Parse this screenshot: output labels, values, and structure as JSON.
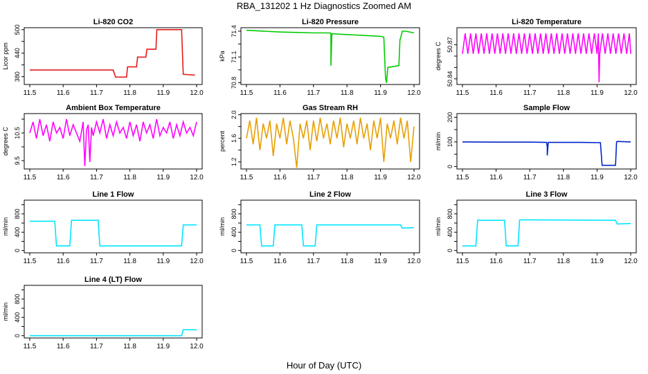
{
  "figure": {
    "title": "RBA_131202  1 Hz Diagnostics Zoomed AM",
    "xlabel": "Hour of Day (UTC)"
  },
  "chart_data": [
    {
      "id": "co2",
      "type": "line",
      "title": "Li-820 CO2",
      "ylabel": "Licor ppm",
      "color": "#e41a1c",
      "xlim": [
        11.5,
        12.0
      ],
      "ylim": [
        360,
        505
      ],
      "xticks": [
        "11.5",
        "11.6",
        "11.7",
        "11.8",
        "11.9",
        "12.0"
      ],
      "xtickvals": [
        11.5,
        11.6,
        11.7,
        11.8,
        11.9,
        12.0
      ],
      "yticks": [
        "380",
        "440",
        "500"
      ],
      "ytickvals": [
        380,
        440,
        500
      ],
      "yticks_minor": [
        410,
        470
      ],
      "series": [
        {
          "name": "CO2",
          "x": [
            11.5,
            11.75,
            11.757,
            11.79,
            11.793,
            11.82,
            11.823,
            11.848,
            11.851,
            11.878,
            11.881,
            11.955,
            11.96,
            11.995
          ],
          "y": [
            397,
            397,
            379,
            379,
            405,
            405,
            430,
            430,
            450,
            450,
            500,
            500,
            386,
            384
          ]
        }
      ]
    },
    {
      "id": "pressure",
      "type": "line",
      "title": "Li-820 Pressure",
      "ylabel": "kPa",
      "color": "#00cc00",
      "xlim": [
        11.5,
        12.0
      ],
      "ylim": [
        70.78,
        71.44
      ],
      "xticks": [
        "11.5",
        "11.6",
        "11.7",
        "11.8",
        "11.9",
        "12.0"
      ],
      "xtickvals": [
        11.5,
        11.6,
        11.7,
        11.8,
        11.9,
        12.0
      ],
      "yticks": [
        "70.8",
        "71.1",
        "71.4"
      ],
      "ytickvals": [
        70.8,
        71.1,
        71.4
      ],
      "yticks_minor": [
        70.95,
        71.25
      ],
      "series": [
        {
          "name": "Pressure",
          "x": [
            11.5,
            11.6,
            11.7,
            11.75,
            11.752,
            11.752,
            11.755,
            11.85,
            11.9,
            11.91,
            11.915,
            11.918,
            11.922,
            11.925,
            11.955,
            11.958,
            11.96,
            11.965,
            11.975,
            12.0
          ],
          "y": [
            71.41,
            71.39,
            71.38,
            71.38,
            71.37,
            71.0,
            71.37,
            71.35,
            71.34,
            71.33,
            70.85,
            70.8,
            70.98,
            70.98,
            71.0,
            71.3,
            71.32,
            71.4,
            71.4,
            71.38
          ]
        }
      ]
    },
    {
      "id": "licor_temp",
      "type": "line",
      "title": "Li-820 Temperature",
      "ylabel": "degrees C",
      "color": "#ff00ff",
      "xlim": [
        11.5,
        12.0
      ],
      "ylim": [
        50.835,
        50.885
      ],
      "xticks": [
        "11.5",
        "11.6",
        "11.7",
        "11.8",
        "11.9",
        "12.0"
      ],
      "xtickvals": [
        11.5,
        11.6,
        11.7,
        11.8,
        11.9,
        12.0
      ],
      "yticks": [
        "50.84",
        "50.87"
      ],
      "ytickvals": [
        50.84,
        50.87
      ],
      "yticks_minor": [
        50.85,
        50.86
      ],
      "series": [
        {
          "name": "Temperature",
          "x": [
            11.5,
            11.508,
            11.516,
            11.524,
            11.532,
            11.54,
            11.548,
            11.556,
            11.564,
            11.572,
            11.58,
            11.588,
            11.596,
            11.604,
            11.612,
            11.62,
            11.628,
            11.636,
            11.644,
            11.652,
            11.66,
            11.668,
            11.676,
            11.684,
            11.692,
            11.7,
            11.708,
            11.716,
            11.724,
            11.732,
            11.74,
            11.748,
            11.756,
            11.764,
            11.772,
            11.78,
            11.788,
            11.796,
            11.804,
            11.812,
            11.82,
            11.828,
            11.836,
            11.844,
            11.852,
            11.86,
            11.868,
            11.876,
            11.884,
            11.892,
            11.9,
            11.904,
            11.906,
            11.908,
            11.916,
            11.924,
            11.932,
            11.94,
            11.948,
            11.956,
            11.964,
            11.972,
            11.98,
            11.988,
            11.996,
            12.0
          ],
          "y": [
            50.862,
            50.88,
            50.862,
            50.88,
            50.862,
            50.88,
            50.862,
            50.88,
            50.862,
            50.88,
            50.862,
            50.88,
            50.862,
            50.88,
            50.862,
            50.88,
            50.862,
            50.88,
            50.862,
            50.88,
            50.862,
            50.88,
            50.862,
            50.88,
            50.862,
            50.88,
            50.862,
            50.88,
            50.862,
            50.88,
            50.862,
            50.88,
            50.862,
            50.88,
            50.862,
            50.88,
            50.862,
            50.88,
            50.862,
            50.88,
            50.862,
            50.88,
            50.862,
            50.88,
            50.862,
            50.88,
            50.862,
            50.88,
            50.862,
            50.88,
            50.862,
            50.88,
            50.837,
            50.862,
            50.88,
            50.862,
            50.88,
            50.862,
            50.88,
            50.862,
            50.88,
            50.862,
            50.88,
            50.862,
            50.88,
            50.862
          ]
        }
      ]
    },
    {
      "id": "box_temp",
      "type": "line",
      "title": "Ambient Box Temperature",
      "ylabel": "degrees C",
      "color": "#ff00ff",
      "xlim": [
        11.5,
        12.0
      ],
      "ylim": [
        9.2,
        11.2
      ],
      "xticks": [
        "11.5",
        "11.6",
        "11.7",
        "11.8",
        "11.9",
        "12.0"
      ],
      "xtickvals": [
        11.5,
        11.6,
        11.7,
        11.8,
        11.9,
        12.0
      ],
      "yticks": [
        "9.5",
        "10.5"
      ],
      "ytickvals": [
        9.5,
        10.5
      ],
      "yticks_minor": [
        10.0,
        11.0
      ],
      "series": [
        {
          "name": "Box temperature",
          "x": [
            11.5,
            11.51,
            11.52,
            11.53,
            11.54,
            11.55,
            11.56,
            11.57,
            11.58,
            11.59,
            11.6,
            11.61,
            11.62,
            11.63,
            11.64,
            11.65,
            11.66,
            11.665,
            11.67,
            11.675,
            11.68,
            11.685,
            11.69,
            11.7,
            11.71,
            11.72,
            11.73,
            11.74,
            11.75,
            11.76,
            11.77,
            11.78,
            11.79,
            11.8,
            11.81,
            11.82,
            11.83,
            11.84,
            11.85,
            11.86,
            11.87,
            11.88,
            11.89,
            11.9,
            11.91,
            11.92,
            11.93,
            11.94,
            11.95,
            11.96,
            11.97,
            11.98,
            11.99,
            12.0
          ],
          "y": [
            10.5,
            10.9,
            10.3,
            11.0,
            10.4,
            10.8,
            10.2,
            10.9,
            10.5,
            10.7,
            10.3,
            11.0,
            10.4,
            10.8,
            10.5,
            10.2,
            10.9,
            9.3,
            10.6,
            10.8,
            9.45,
            10.7,
            10.4,
            10.9,
            10.5,
            11.0,
            10.3,
            10.8,
            10.4,
            10.9,
            10.5,
            10.7,
            10.3,
            10.9,
            10.4,
            10.8,
            10.2,
            10.9,
            10.5,
            10.8,
            10.3,
            11.0,
            10.4,
            10.7,
            10.5,
            10.9,
            10.3,
            10.8,
            10.4,
            10.9,
            10.5,
            10.7,
            10.4,
            10.9
          ]
        }
      ]
    },
    {
      "id": "gas_rh",
      "type": "line",
      "title": "Gas Stream RH",
      "ylabel": "percent",
      "color": "#e69f00",
      "xlim": [
        11.5,
        12.0
      ],
      "ylim": [
        1.08,
        2.02
      ],
      "xticks": [
        "11.5",
        "11.6",
        "11.7",
        "11.8",
        "11.9",
        "12.0"
      ],
      "xtickvals": [
        11.5,
        11.6,
        11.7,
        11.8,
        11.9,
        12.0
      ],
      "yticks": [
        "1.2",
        "1.6",
        "2.0"
      ],
      "ytickvals": [
        1.2,
        1.6,
        2.0
      ],
      "yticks_minor": [
        1.4,
        1.8
      ],
      "series": [
        {
          "name": "RH",
          "x": [
            11.5,
            11.51,
            11.52,
            11.53,
            11.54,
            11.55,
            11.56,
            11.57,
            11.58,
            11.59,
            11.6,
            11.61,
            11.62,
            11.63,
            11.64,
            11.65,
            11.66,
            11.67,
            11.68,
            11.69,
            11.7,
            11.71,
            11.72,
            11.73,
            11.74,
            11.75,
            11.76,
            11.77,
            11.78,
            11.79,
            11.8,
            11.81,
            11.82,
            11.83,
            11.84,
            11.85,
            11.86,
            11.87,
            11.88,
            11.89,
            11.9,
            11.91,
            11.92,
            11.93,
            11.94,
            11.95,
            11.96,
            11.97,
            11.98,
            11.99,
            12.0
          ],
          "y": [
            1.6,
            1.9,
            1.5,
            1.95,
            1.4,
            1.85,
            1.6,
            1.9,
            1.3,
            1.85,
            1.6,
            1.95,
            1.5,
            1.9,
            1.6,
            1.1,
            1.85,
            1.6,
            1.9,
            1.4,
            1.9,
            1.55,
            1.95,
            1.6,
            1.85,
            1.5,
            1.9,
            1.6,
            1.95,
            1.45,
            1.85,
            1.6,
            1.9,
            1.5,
            1.95,
            1.6,
            1.85,
            1.4,
            1.9,
            1.6,
            1.95,
            1.2,
            1.85,
            1.6,
            1.9,
            1.5,
            1.95,
            1.6,
            1.9,
            1.2,
            1.8
          ]
        }
      ]
    },
    {
      "id": "sample_flow",
      "type": "line",
      "title": "Sample Flow",
      "ylabel": "ml/min",
      "color": "#0022cc",
      "xlim": [
        11.5,
        12.0
      ],
      "ylim": [
        -10,
        215
      ],
      "xticks": [
        "11.5",
        "11.6",
        "11.7",
        "11.8",
        "11.9",
        "12.0"
      ],
      "xtickvals": [
        11.5,
        11.6,
        11.7,
        11.8,
        11.9,
        12.0
      ],
      "yticks": [
        "0",
        "100",
        "200"
      ],
      "ytickvals": [
        0,
        100,
        200
      ],
      "yticks_minor": [
        50,
        150
      ],
      "series": [
        {
          "name": "Sample flow",
          "x": [
            11.5,
            11.6,
            11.7,
            11.75,
            11.752,
            11.752,
            11.755,
            11.85,
            11.91,
            11.915,
            11.955,
            11.958,
            11.96,
            12.0
          ],
          "y": [
            100,
            99,
            99,
            98,
            80,
            45,
            98,
            98,
            97,
            5,
            5,
            100,
            102,
            100
          ]
        }
      ]
    },
    {
      "id": "line1",
      "type": "line",
      "title": "Line 1 Flow",
      "ylabel": "ml/min",
      "color": "#00e5ff",
      "xlim": [
        11.5,
        12.0
      ],
      "ylim": [
        -50,
        1100
      ],
      "xticks": [
        "11.5",
        "11.6",
        "11.7",
        "11.8",
        "11.9",
        "12.0"
      ],
      "xtickvals": [
        11.5,
        11.6,
        11.7,
        11.8,
        11.9,
        12.0
      ],
      "yticks": [
        "0",
        "400",
        "800"
      ],
      "ytickvals": [
        0,
        400,
        800
      ],
      "yticks_minor": [
        200,
        600,
        1000
      ],
      "series": [
        {
          "name": "Line 1 flow",
          "x": [
            11.5,
            11.575,
            11.58,
            11.62,
            11.625,
            11.705,
            11.71,
            11.955,
            11.96,
            12.0
          ],
          "y": [
            640,
            640,
            100,
            100,
            660,
            660,
            100,
            100,
            560,
            560
          ]
        }
      ]
    },
    {
      "id": "line2",
      "type": "line",
      "title": "Line 2 Flow",
      "ylabel": "ml/min",
      "color": "#00e5ff",
      "xlim": [
        11.5,
        12.0
      ],
      "ylim": [
        -50,
        1100
      ],
      "xticks": [
        "11.5",
        "11.6",
        "11.7",
        "11.8",
        "11.9",
        "12.0"
      ],
      "xtickvals": [
        11.5,
        11.6,
        11.7,
        11.8,
        11.9,
        12.0
      ],
      "yticks": [
        "0",
        "400",
        "800"
      ],
      "ytickvals": [
        0,
        400,
        800
      ],
      "yticks_minor": [
        200,
        600,
        1000
      ],
      "series": [
        {
          "name": "Line 2 flow",
          "x": [
            11.5,
            11.54,
            11.545,
            11.58,
            11.585,
            11.665,
            11.67,
            11.705,
            11.71,
            11.96,
            11.965,
            12.0
          ],
          "y": [
            560,
            560,
            100,
            100,
            560,
            560,
            100,
            100,
            560,
            560,
            490,
            500
          ]
        }
      ]
    },
    {
      "id": "line3",
      "type": "line",
      "title": "Line 3 Flow",
      "ylabel": "ml/min",
      "color": "#00e5ff",
      "xlim": [
        11.5,
        12.0
      ],
      "ylim": [
        -50,
        1100
      ],
      "xticks": [
        "11.5",
        "11.6",
        "11.7",
        "11.8",
        "11.9",
        "12.0"
      ],
      "xtickvals": [
        11.5,
        11.6,
        11.7,
        11.8,
        11.9,
        12.0
      ],
      "yticks": [
        "0",
        "400",
        "800"
      ],
      "ytickvals": [
        0,
        400,
        800
      ],
      "yticks_minor": [
        200,
        600,
        1000
      ],
      "series": [
        {
          "name": "Line 3 flow",
          "x": [
            11.5,
            11.54,
            11.545,
            11.625,
            11.63,
            11.665,
            11.67,
            11.955,
            11.96,
            12.0
          ],
          "y": [
            100,
            100,
            660,
            660,
            100,
            100,
            670,
            660,
            580,
            590
          ]
        }
      ]
    },
    {
      "id": "line4",
      "type": "line",
      "title": "Line 4 (LT) Flow",
      "ylabel": "ml/min",
      "color": "#00e5ff",
      "xlim": [
        11.5,
        12.0
      ],
      "ylim": [
        -50,
        1100
      ],
      "xticks": [
        "11.5",
        "11.6",
        "11.7",
        "11.8",
        "11.9",
        "12.0"
      ],
      "xtickvals": [
        11.5,
        11.6,
        11.7,
        11.8,
        11.9,
        12.0
      ],
      "yticks": [
        "0",
        "400",
        "800"
      ],
      "ytickvals": [
        0,
        400,
        800
      ],
      "yticks_minor": [
        200,
        600,
        1000
      ],
      "series": [
        {
          "name": "Line 4 flow",
          "x": [
            11.5,
            11.955,
            11.96,
            12.0
          ],
          "y": [
            0,
            0,
            130,
            130
          ]
        }
      ]
    }
  ]
}
